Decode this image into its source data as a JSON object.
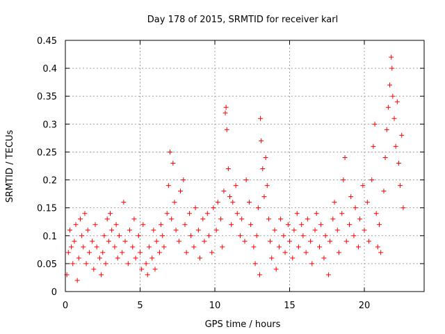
{
  "chart_data": {
    "type": "scatter",
    "title": "Day 178 of 2015, SRMTID for receiver karl",
    "xlabel": "GPS time / hours",
    "ylabel": "SRMTID / TECUs",
    "xlim": [
      0,
      24
    ],
    "ylim": [
      0,
      0.45
    ],
    "x_ticks": [
      0,
      5,
      10,
      15,
      20
    ],
    "y_ticks": [
      0,
      0.05,
      0.1,
      0.15,
      0.2,
      0.25,
      0.3,
      0.35,
      0.4,
      0.45
    ],
    "x_tick_labels": [
      "0",
      "5",
      "10",
      "15",
      "20"
    ],
    "y_tick_labels": [
      "0",
      "0.05",
      "0.1",
      "0.15",
      "0.2",
      "0.25",
      "0.3",
      "0.35",
      "0.4",
      "0.45"
    ],
    "grid": true,
    "marker": "+",
    "color": "#ff0000",
    "series": [
      {
        "name": "SRMTID",
        "points": [
          [
            0.1,
            0.03
          ],
          [
            0.2,
            0.07
          ],
          [
            0.3,
            0.11
          ],
          [
            0.4,
            0.08
          ],
          [
            0.5,
            0.05
          ],
          [
            0.6,
            0.09
          ],
          [
            0.7,
            0.12
          ],
          [
            0.8,
            0.02
          ],
          [
            0.9,
            0.06
          ],
          [
            1.0,
            0.13
          ],
          [
            1.1,
            0.1
          ],
          [
            1.2,
            0.08
          ],
          [
            1.3,
            0.14
          ],
          [
            1.4,
            0.05
          ],
          [
            1.5,
            0.11
          ],
          [
            1.6,
            0.07
          ],
          [
            1.8,
            0.09
          ],
          [
            1.9,
            0.04
          ],
          [
            2.0,
            0.12
          ],
          [
            2.1,
            0.08
          ],
          [
            2.3,
            0.06
          ],
          [
            2.4,
            0.03
          ],
          [
            2.5,
            0.07
          ],
          [
            2.6,
            0.1
          ],
          [
            2.7,
            0.05
          ],
          [
            2.8,
            0.13
          ],
          [
            2.9,
            0.09
          ],
          [
            3.0,
            0.14
          ],
          [
            3.1,
            0.11
          ],
          [
            3.3,
            0.08
          ],
          [
            3.4,
            0.12
          ],
          [
            3.5,
            0.06
          ],
          [
            3.6,
            0.1
          ],
          [
            3.8,
            0.07
          ],
          [
            3.9,
            0.16
          ],
          [
            4.0,
            0.09
          ],
          [
            4.2,
            0.05
          ],
          [
            4.3,
            0.11
          ],
          [
            4.5,
            0.08
          ],
          [
            4.6,
            0.13
          ],
          [
            4.7,
            0.06
          ],
          [
            4.9,
            0.1
          ],
          [
            5.0,
            0.07
          ],
          [
            5.1,
            0.04
          ],
          [
            5.2,
            0.12
          ],
          [
            5.4,
            0.05
          ],
          [
            5.5,
            0.03
          ],
          [
            5.6,
            0.08
          ],
          [
            5.8,
            0.06
          ],
          [
            5.9,
            0.11
          ],
          [
            6.0,
            0.04
          ],
          [
            6.1,
            0.09
          ],
          [
            6.3,
            0.07
          ],
          [
            6.4,
            0.12
          ],
          [
            6.5,
            0.1
          ],
          [
            6.6,
            0.08
          ],
          [
            6.8,
            0.14
          ],
          [
            6.9,
            0.19
          ],
          [
            7.0,
            0.25
          ],
          [
            7.1,
            0.13
          ],
          [
            7.2,
            0.23
          ],
          [
            7.3,
            0.16
          ],
          [
            7.4,
            0.11
          ],
          [
            7.6,
            0.09
          ],
          [
            7.7,
            0.18
          ],
          [
            7.9,
            0.2
          ],
          [
            8.0,
            0.12
          ],
          [
            8.1,
            0.07
          ],
          [
            8.3,
            0.14
          ],
          [
            8.4,
            0.1
          ],
          [
            8.6,
            0.08
          ],
          [
            8.7,
            0.15
          ],
          [
            8.9,
            0.11
          ],
          [
            9.0,
            0.06
          ],
          [
            9.2,
            0.13
          ],
          [
            9.3,
            0.09
          ],
          [
            9.5,
            0.14
          ],
          [
            9.6,
            0.1
          ],
          [
            9.8,
            0.07
          ],
          [
            9.9,
            0.15
          ],
          [
            10.1,
            0.11
          ],
          [
            10.2,
            0.16
          ],
          [
            10.4,
            0.13
          ],
          [
            10.5,
            0.08
          ],
          [
            10.6,
            0.18
          ],
          [
            10.7,
            0.32
          ],
          [
            10.75,
            0.33
          ],
          [
            10.8,
            0.29
          ],
          [
            10.9,
            0.22
          ],
          [
            11.0,
            0.17
          ],
          [
            11.1,
            0.12
          ],
          [
            11.2,
            0.16
          ],
          [
            11.4,
            0.19
          ],
          [
            11.5,
            0.14
          ],
          [
            11.7,
            0.1
          ],
          [
            11.8,
            0.13
          ],
          [
            12.0,
            0.09
          ],
          [
            12.1,
            0.2
          ],
          [
            12.3,
            0.16
          ],
          [
            12.4,
            0.12
          ],
          [
            12.6,
            0.08
          ],
          [
            12.7,
            0.05
          ],
          [
            12.8,
            0.1
          ],
          [
            12.9,
            0.15
          ],
          [
            13.0,
            0.03
          ],
          [
            13.05,
            0.31
          ],
          [
            13.1,
            0.27
          ],
          [
            13.2,
            0.22
          ],
          [
            13.3,
            0.17
          ],
          [
            13.4,
            0.24
          ],
          [
            13.5,
            0.19
          ],
          [
            13.6,
            0.13
          ],
          [
            13.7,
            0.09
          ],
          [
            13.8,
            0.06
          ],
          [
            14.0,
            0.11
          ],
          [
            14.1,
            0.04
          ],
          [
            14.3,
            0.08
          ],
          [
            14.4,
            0.13
          ],
          [
            14.6,
            0.1
          ],
          [
            14.7,
            0.07
          ],
          [
            14.9,
            0.12
          ],
          [
            15.0,
            0.09
          ],
          [
            15.2,
            0.06
          ],
          [
            15.3,
            0.11
          ],
          [
            15.5,
            0.14
          ],
          [
            15.6,
            0.08
          ],
          [
            15.8,
            0.12
          ],
          [
            15.9,
            0.1
          ],
          [
            16.1,
            0.07
          ],
          [
            16.2,
            0.13
          ],
          [
            16.4,
            0.09
          ],
          [
            16.5,
            0.05
          ],
          [
            16.7,
            0.11
          ],
          [
            16.8,
            0.14
          ],
          [
            17.0,
            0.08
          ],
          [
            17.1,
            0.12
          ],
          [
            17.3,
            0.06
          ],
          [
            17.4,
            0.1
          ],
          [
            17.6,
            0.03
          ],
          [
            17.7,
            0.09
          ],
          [
            17.9,
            0.13
          ],
          [
            18.0,
            0.16
          ],
          [
            18.2,
            0.11
          ],
          [
            18.3,
            0.07
          ],
          [
            18.5,
            0.14
          ],
          [
            18.6,
            0.2
          ],
          [
            18.7,
            0.24
          ],
          [
            18.8,
            0.09
          ],
          [
            19.0,
            0.12
          ],
          [
            19.1,
            0.17
          ],
          [
            19.3,
            0.1
          ],
          [
            19.4,
            0.15
          ],
          [
            19.6,
            0.08
          ],
          [
            19.7,
            0.13
          ],
          [
            19.9,
            0.19
          ],
          [
            20.0,
            0.11
          ],
          [
            20.2,
            0.16
          ],
          [
            20.3,
            0.09
          ],
          [
            20.5,
            0.2
          ],
          [
            20.6,
            0.26
          ],
          [
            20.7,
            0.3
          ],
          [
            20.8,
            0.14
          ],
          [
            20.9,
            0.08
          ],
          [
            21.0,
            0.12
          ],
          [
            21.1,
            0.07
          ],
          [
            21.3,
            0.18
          ],
          [
            21.4,
            0.24
          ],
          [
            21.5,
            0.29
          ],
          [
            21.6,
            0.33
          ],
          [
            21.7,
            0.37
          ],
          [
            21.8,
            0.42
          ],
          [
            21.85,
            0.4
          ],
          [
            21.9,
            0.35
          ],
          [
            22.0,
            0.31
          ],
          [
            22.1,
            0.26
          ],
          [
            22.2,
            0.34
          ],
          [
            22.3,
            0.23
          ],
          [
            22.4,
            0.19
          ],
          [
            22.5,
            0.28
          ],
          [
            22.6,
            0.15
          ]
        ]
      }
    ]
  }
}
